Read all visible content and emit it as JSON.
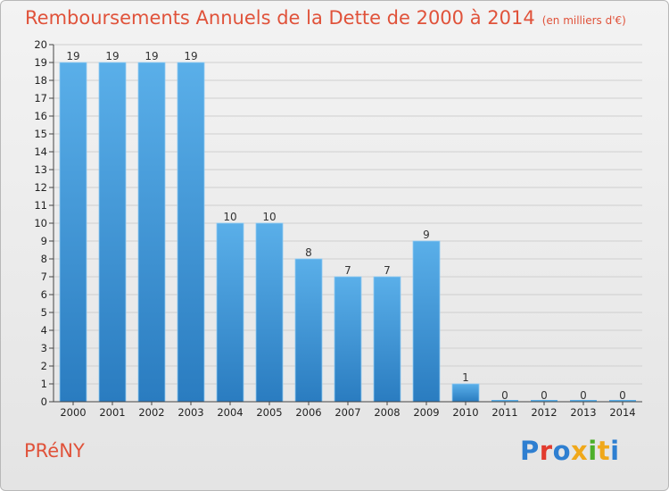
{
  "title_main": "Remboursements Annuels de la Dette de 2000 à 2014",
  "title_unit": "(en milliers d'€)",
  "location": "PRéNY",
  "logo": {
    "text": "Proxiti",
    "letter_colors": [
      "#2e7fd1",
      "#e23b2e",
      "#2e7fd1",
      "#f0a81a",
      "#4caf2a",
      "#f0a81a",
      "#2e7fd1"
    ]
  },
  "colors": {
    "bar_light": "#5aafe9",
    "bar_dark": "#2a7cc0",
    "title": "#e0523a",
    "grid": "#cfcfcf"
  },
  "chart_data": {
    "type": "bar",
    "title": "Remboursements Annuels de la Dette de 2000 à 2014",
    "categories": [
      "2000",
      "2001",
      "2002",
      "2003",
      "2004",
      "2005",
      "2006",
      "2007",
      "2008",
      "2009",
      "2010",
      "2011",
      "2012",
      "2013",
      "2014"
    ],
    "values": [
      19,
      19,
      19,
      19,
      10,
      10,
      8,
      7,
      7,
      9,
      1,
      0,
      0,
      0,
      0
    ],
    "data_labels": [
      "19",
      "19",
      "19",
      "19",
      "10",
      "10",
      "8",
      "7",
      "7",
      "9",
      "1",
      "0",
      "0",
      "0",
      "0"
    ],
    "ylim": [
      0,
      20
    ],
    "yticks": [
      0,
      1,
      2,
      3,
      4,
      5,
      6,
      7,
      8,
      9,
      10,
      11,
      12,
      13,
      14,
      15,
      16,
      17,
      18,
      19,
      20
    ],
    "grid": true
  }
}
